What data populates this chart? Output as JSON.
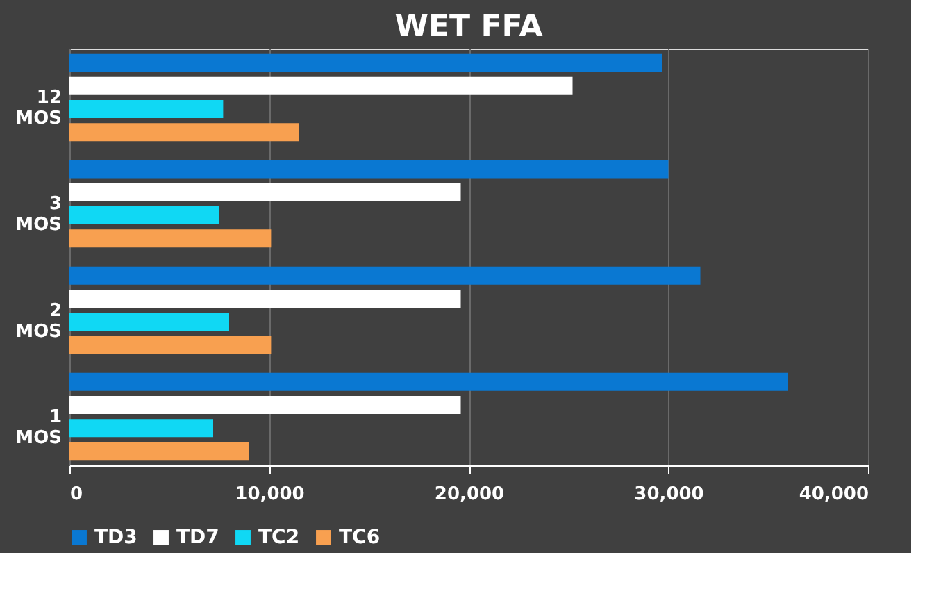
{
  "chart_data": {
    "type": "bar",
    "orientation": "horizontal",
    "title": "WET FFA",
    "categories": [
      "12 MOS",
      "3 MOS",
      "2 MOS",
      "1 MOS"
    ],
    "series": [
      {
        "name": "TD3",
        "color": "#0a78d2",
        "values": [
          29700,
          30000,
          31600,
          36000
        ]
      },
      {
        "name": "TD7",
        "color": "#ffffff",
        "values": [
          25200,
          19600,
          19600,
          19600
        ]
      },
      {
        "name": "TC2",
        "color": "#10d8f4",
        "values": [
          7700,
          7500,
          8000,
          7200
        ]
      },
      {
        "name": "TC6",
        "color": "#f8a050",
        "values": [
          11500,
          10100,
          10100,
          9000
        ]
      }
    ],
    "xlim": [
      0,
      40000
    ],
    "xticks": [
      {
        "value": 0,
        "label": "0"
      },
      {
        "value": 10000,
        "label": "10,000"
      },
      {
        "value": 20000,
        "label": "20,000"
      },
      {
        "value": 30000,
        "label": "30,000"
      },
      {
        "value": 40000,
        "label": "40,000"
      }
    ],
    "grid": "x",
    "legend": "bottom"
  }
}
